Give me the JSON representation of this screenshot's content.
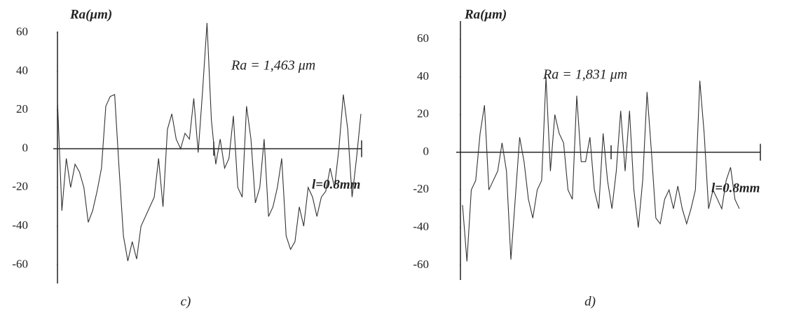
{
  "chart_data": [
    {
      "type": "line",
      "y_label": "Ra(μm)",
      "annotation": "Ra = 1,463 μm",
      "length_label": "l=0.8mm",
      "caption": "c)",
      "color": "#333333",
      "ylim": [
        -66,
        66
      ],
      "yticks": [
        -60,
        -40,
        -20,
        0,
        20,
        40,
        60
      ],
      "values": [
        25,
        -32,
        -5,
        -20,
        -8,
        -12,
        -20,
        -38,
        -32,
        -22,
        -10,
        22,
        27,
        28,
        -10,
        -45,
        -58,
        -48,
        -57,
        -40,
        -35,
        -30,
        -25,
        -5,
        -30,
        10,
        18,
        5,
        0,
        8,
        5,
        26,
        -2,
        30,
        65,
        15,
        -8,
        5,
        -10,
        -5,
        17,
        -20,
        -25,
        22,
        5,
        -28,
        -20,
        5,
        -35,
        -30,
        -20,
        -5,
        -45,
        -52,
        -48,
        -30,
        -40,
        -20,
        -25,
        -35,
        -25,
        -22,
        -10,
        -20,
        0,
        28,
        10,
        -25,
        -5,
        18
      ]
    },
    {
      "type": "line",
      "y_label": "Ra(μm)",
      "annotation": "Ra = 1,831 μm",
      "length_label": "l=0.8mm",
      "caption": "d)",
      "color": "#333333",
      "ylim": [
        -66,
        66
      ],
      "yticks": [
        -60,
        -40,
        -20,
        0,
        20,
        40,
        60
      ],
      "values": [
        -28,
        -58,
        -20,
        -15,
        10,
        25,
        -20,
        -15,
        -10,
        5,
        -10,
        -57,
        -25,
        8,
        -5,
        -25,
        -35,
        -20,
        -15,
        40,
        -10,
        20,
        10,
        5,
        -20,
        -25,
        30,
        -5,
        -5,
        8,
        -20,
        -30,
        10,
        -15,
        -30,
        -10,
        22,
        -10,
        22,
        -20,
        -40,
        -15,
        32,
        0,
        -35,
        -38,
        -25,
        -20,
        -30,
        -18,
        -30,
        -38,
        -30,
        -20,
        38,
        10,
        -30,
        -20,
        -25,
        -30,
        -15,
        -8,
        -25,
        -30
      ]
    }
  ]
}
